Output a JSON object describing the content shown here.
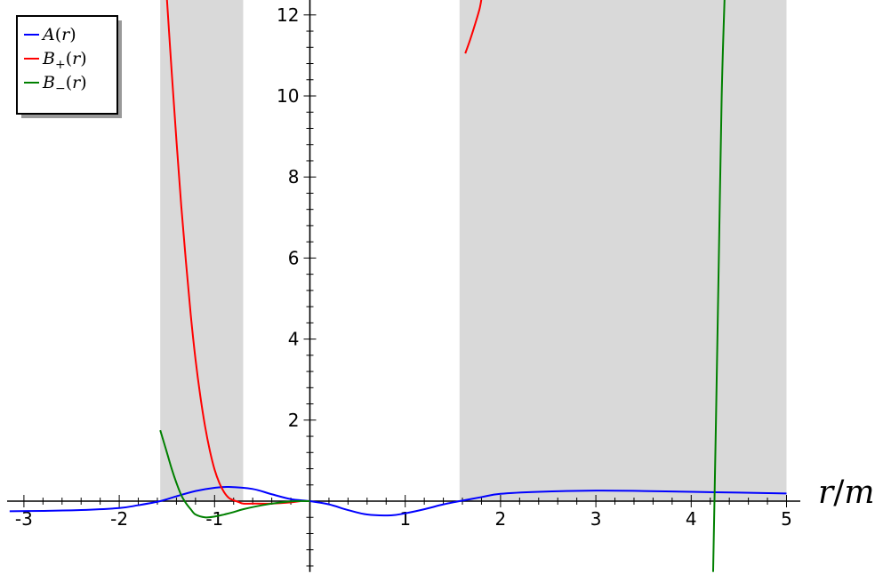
{
  "chart_data": {
    "type": "line",
    "title": "",
    "xlabel": "r/m",
    "ylabel": "",
    "xlim": [
      -3.15,
      5.15
    ],
    "ylim": [
      -1.75,
      12.4
    ],
    "grid": false,
    "legend_placement": "top-left",
    "x_ticks": [
      {
        "value": -3,
        "label": "-3"
      },
      {
        "value": -2,
        "label": "-2"
      },
      {
        "value": -1,
        "label": "-1"
      },
      {
        "value": 1,
        "label": "1"
      },
      {
        "value": 2,
        "label": "2"
      },
      {
        "value": 3,
        "label": "3"
      },
      {
        "value": 4,
        "label": "4"
      },
      {
        "value": 5,
        "label": "5"
      }
    ],
    "y_ticks": [
      {
        "value": 2,
        "label": "2"
      },
      {
        "value": 4,
        "label": "4"
      },
      {
        "value": 6,
        "label": "6"
      },
      {
        "value": 8,
        "label": "8"
      },
      {
        "value": 10,
        "label": "10"
      },
      {
        "value": 12,
        "label": "12"
      }
    ],
    "shaded_regions": [
      {
        "x0": -1.57,
        "x1": -0.7,
        "color": "#d9d9d9"
      },
      {
        "x0": 1.57,
        "x1": 5.0,
        "color": "#d9d9d9"
      }
    ],
    "series": [
      {
        "name": "A(r)",
        "label_tex": "A(r)",
        "color": "#0000ff",
        "x": [
          -3.2,
          -2.8,
          -2.4,
          -2.0,
          -1.8,
          -1.57,
          -1.4,
          -1.2,
          -1.0,
          -0.85,
          -0.6,
          -0.4,
          -0.2,
          0.0,
          0.2,
          0.4,
          0.6,
          0.85,
          1.0,
          1.2,
          1.4,
          1.57,
          1.8,
          2.0,
          2.4,
          3.0,
          3.5,
          4.0,
          4.5,
          5.0
        ],
        "y": [
          -0.25,
          -0.24,
          -0.22,
          -0.17,
          -0.1,
          0.0,
          0.12,
          0.25,
          0.33,
          0.35,
          0.3,
          0.17,
          0.05,
          0.0,
          -0.08,
          -0.22,
          -0.33,
          -0.35,
          -0.3,
          -0.2,
          -0.08,
          0.0,
          0.1,
          0.18,
          0.23,
          0.26,
          0.25,
          0.23,
          0.21,
          0.19
        ]
      },
      {
        "name": "B+(r)",
        "label_tex": "B_+(r)",
        "color": "#ff0000",
        "segments": [
          {
            "x": [
              -1.5,
              -1.45,
              -1.4,
              -1.35,
              -1.3,
              -1.25,
              -1.2,
              -1.15,
              -1.1,
              -1.05,
              -1.0,
              -0.95,
              -0.9,
              -0.85,
              -0.8,
              -0.75,
              -0.7,
              -0.6,
              -0.4,
              -0.2,
              -0.1
            ],
            "y": [
              12.4,
              10.6,
              8.9,
              7.3,
              5.9,
              4.6,
              3.5,
              2.6,
              1.85,
              1.25,
              0.78,
              0.45,
              0.22,
              0.08,
              0.02,
              -0.02,
              -0.06,
              -0.06,
              -0.06,
              -0.03,
              0.0
            ]
          },
          {
            "x": [
              1.63,
              1.68,
              1.73,
              1.78,
              1.8
            ],
            "y": [
              11.05,
              11.38,
              11.75,
              12.15,
              12.4
            ]
          }
        ]
      },
      {
        "name": "B-(r)",
        "label_tex": "B_-(r)",
        "color": "#008000",
        "segments": [
          {
            "x": [
              -1.57,
              -1.5,
              -1.45,
              -1.4,
              -1.35,
              -1.3,
              -1.25,
              -1.2,
              -1.1,
              -1.0,
              -0.9,
              -0.8,
              -0.7,
              -0.5,
              -0.3,
              -0.15,
              0.0
            ],
            "y": [
              1.75,
              1.2,
              0.8,
              0.45,
              0.15,
              -0.05,
              -0.2,
              -0.33,
              -0.4,
              -0.38,
              -0.33,
              -0.27,
              -0.2,
              -0.1,
              -0.03,
              0.0,
              0.0
            ]
          },
          {
            "x": [
              4.23,
              4.26,
              4.29,
              4.32,
              4.35
            ],
            "y": [
              -1.75,
              2.0,
              6.0,
              10.0,
              12.4
            ]
          }
        ]
      }
    ]
  }
}
